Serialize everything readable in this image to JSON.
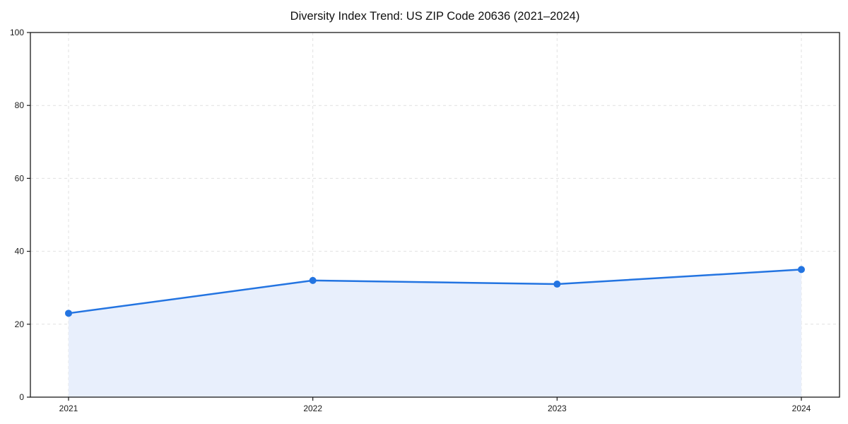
{
  "title": "Diversity Index Trend: US ZIP Code 20636 (2021–2024)",
  "chart_data": {
    "type": "area",
    "title": "Diversity Index Trend: US ZIP Code 20636 (2021–2024)",
    "categories": [
      "2021",
      "2022",
      "2023",
      "2024"
    ],
    "series": [
      {
        "name": "Diversity Index",
        "values": [
          23,
          32,
          31,
          35
        ]
      }
    ],
    "xlabel": "",
    "ylabel": "",
    "ylim": [
      0,
      100
    ],
    "yticks": [
      0,
      20,
      40,
      60,
      80,
      100
    ],
    "grid": true,
    "grid_style": "dashed",
    "legend_position": "none",
    "colors": {
      "line": "#2374e1",
      "marker": "#2374e1",
      "fill": "#e8effc",
      "grid": "#e1e1e1",
      "axis": "#1a1a1a",
      "tick_text": "#1a1a1a",
      "title_text": "#111111"
    }
  }
}
